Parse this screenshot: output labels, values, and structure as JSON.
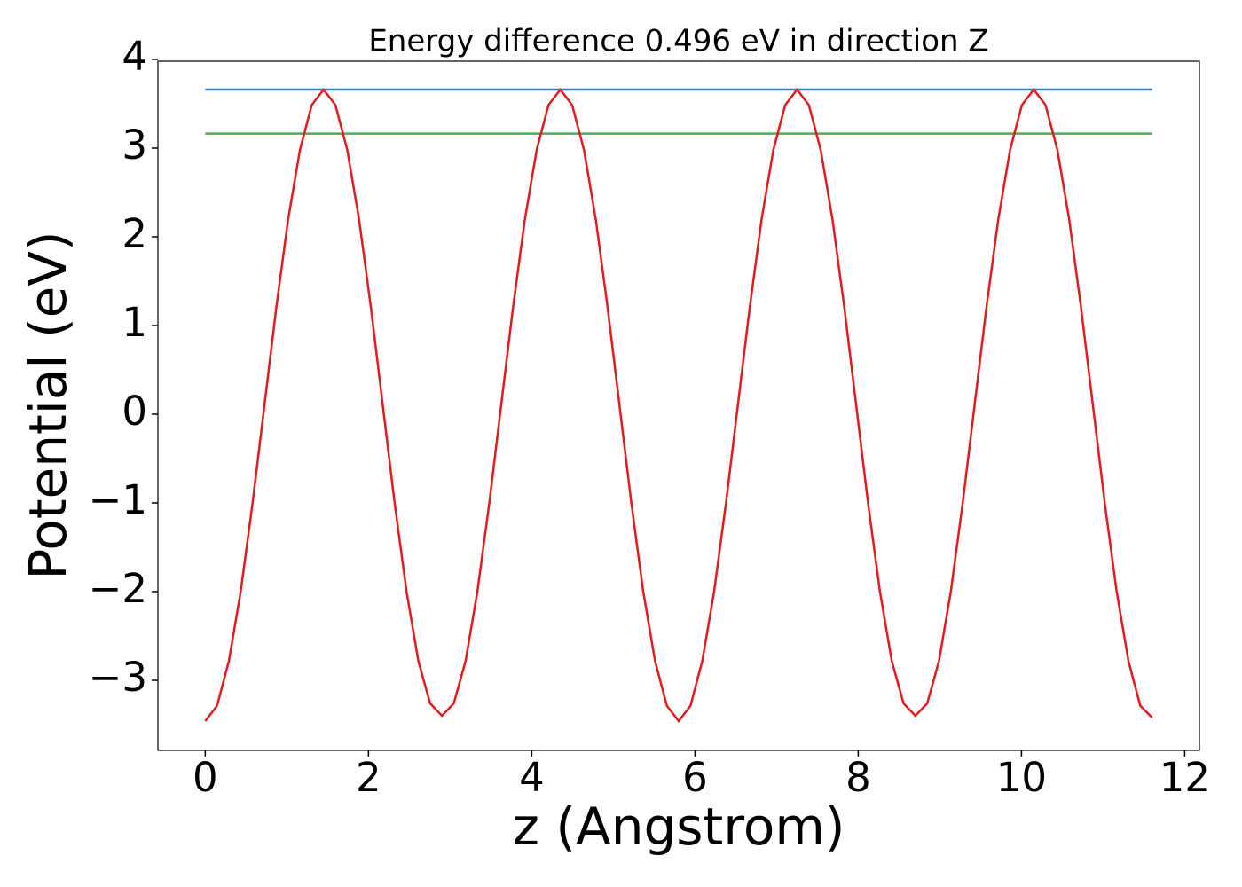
{
  "chart_data": {
    "type": "line",
    "title": "Energy difference 0.496 eV in direction Z",
    "xlabel": "z (Angstrom)",
    "ylabel": "Potential (eV)",
    "xlim": [
      -0.58,
      12.18
    ],
    "ylim": [
      -3.79,
      3.98
    ],
    "xticks": [
      0,
      2,
      4,
      6,
      8,
      10,
      12
    ],
    "yticks": [
      {
        "value": -3,
        "label": "−3"
      },
      {
        "value": -2,
        "label": "−2"
      },
      {
        "value": -1,
        "label": "−1"
      },
      0,
      1,
      2,
      3,
      4
    ],
    "series": [
      {
        "color": "#377eb8",
        "x": [
          0,
          11.6
        ],
        "values": [
          3.66,
          3.66
        ]
      },
      {
        "color": "#4daf4a",
        "x": [
          0,
          11.6
        ],
        "values": [
          3.164,
          3.164
        ]
      },
      {
        "color": "#e41a1c",
        "x": [
          0,
          0.145,
          0.29,
          0.435,
          0.58,
          0.725,
          0.87,
          1.015,
          1.16,
          1.305,
          1.45,
          1.595,
          1.74,
          1.885,
          2.03,
          2.175,
          2.32,
          2.465,
          2.61,
          2.755,
          2.9,
          3.045,
          3.19,
          3.335,
          3.48,
          3.625,
          3.77,
          3.915,
          4.06,
          4.205,
          4.35,
          4.495,
          4.64,
          4.785,
          4.93,
          5.075,
          5.22,
          5.365,
          5.51,
          5.655,
          5.8,
          5.945,
          6.09,
          6.235,
          6.38,
          6.525,
          6.67,
          6.815,
          6.96,
          7.105,
          7.25,
          7.395,
          7.54,
          7.685,
          7.83,
          7.975,
          8.12,
          8.265,
          8.41,
          8.555,
          8.7,
          8.845,
          8.99,
          9.135,
          9.28,
          9.425,
          9.57,
          9.715,
          9.86,
          10.005,
          10.15,
          10.295,
          10.44,
          10.585,
          10.73,
          10.875,
          11.02,
          11.165,
          11.31,
          11.455,
          11.6
        ],
        "values": [
          -3.46,
          -3.286,
          -2.78,
          -1.993,
          -1.0,
          0.1,
          1.2,
          2.193,
          2.98,
          3.486,
          3.66,
          3.486,
          2.98,
          2.193,
          1.2,
          0.1,
          -1.0,
          -1.993,
          -2.78,
          -3.26,
          -3.4,
          -3.26,
          -2.78,
          -1.993,
          -1.0,
          0.1,
          1.2,
          2.193,
          2.98,
          3.486,
          3.66,
          3.486,
          2.98,
          2.193,
          1.2,
          0.1,
          -1.0,
          -1.993,
          -2.78,
          -3.286,
          -3.46,
          -3.286,
          -2.78,
          -1.993,
          -1.0,
          0.1,
          1.2,
          2.193,
          2.98,
          3.486,
          3.66,
          3.486,
          2.98,
          2.193,
          1.2,
          0.1,
          -1.0,
          -1.993,
          -2.78,
          -3.26,
          -3.4,
          -3.26,
          -2.78,
          -1.993,
          -1.0,
          0.1,
          1.2,
          2.193,
          2.98,
          3.486,
          3.66,
          3.486,
          2.98,
          2.193,
          1.2,
          0.1,
          -1.0,
          -1.993,
          -2.78,
          -3.286,
          -3.42
        ]
      }
    ]
  }
}
